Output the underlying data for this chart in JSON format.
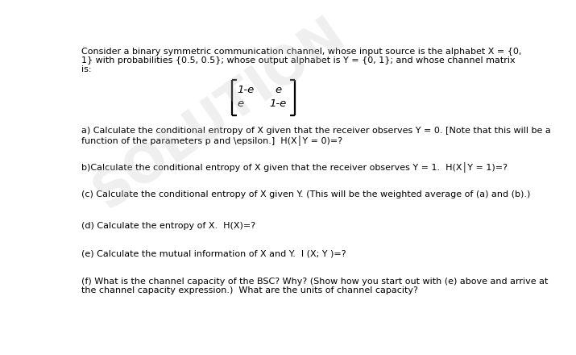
{
  "background_color": "#ffffff",
  "title_text": "Consider a binary symmetric communication channel, whose input source is the alphabet X = {0,\n1} with probabilities {0.5, 0.5}; whose output alphabet is Y = {0, 1}; and whose channel matrix\nis:",
  "matrix_entries": [
    "1-e",
    "e",
    "e",
    "1-e"
  ],
  "part_a": "a) Calculate the conditional entropy of X given that the receiver observes Y = 0. [Note that this will be a\nfunction of the parameters p and \\epsilon.]  H(X│Y = 0)=?",
  "part_b": "b)Calculate the conditional entropy of X given that the receiver observes Y = 1.  H(X│Y = 1)=?",
  "part_c": "(c) Calculate the conditional entropy of X given Y. (This will be the weighted average of (a) and (b).)",
  "part_d": "(d) Calculate the entropy of X.  H(X)=?",
  "part_e": "(e) Calculate the mutual information of X and Y.  │(X; Y )=?",
  "part_f": "(f) What is the channel capacity of the BSC? Why? (Show how you start out with (e) above and arrive at\nthe channel capacity expression.)  What are the units of channel capacity?",
  "font_size": 8.0,
  "font_size_matrix": 9.5,
  "text_color": "#000000",
  "watermark_color": "#c8c8c8",
  "watermark_alpha": 0.28,
  "watermark_rotation": 35,
  "watermark_fontsize": 46
}
